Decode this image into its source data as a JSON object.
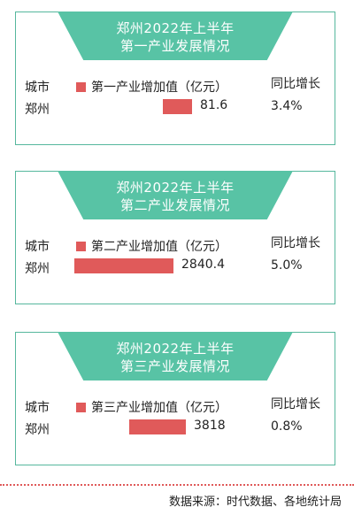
{
  "colors": {
    "teal": "#58c3a5",
    "bar": "#e05a5a",
    "border": "#56b79d"
  },
  "labels": {
    "city": "城市",
    "growth": "同比增长"
  },
  "source": "数据来源：时代数据、各地统计局",
  "chart_data": [
    {
      "type": "bar",
      "orientation": "horizontal",
      "title_line1": "郑州2022年上半年",
      "title_line2": "第一产业发展情况",
      "legend": "第一产业增加值（亿元）",
      "categories": [
        "郑州"
      ],
      "values": [
        81.6
      ],
      "value_label": "81.6",
      "growth": "3.4%"
    },
    {
      "type": "bar",
      "orientation": "horizontal",
      "title_line1": "郑州2022年上半年",
      "title_line2": "第二产业发展情况",
      "legend": "第二产业增加值（亿元）",
      "categories": [
        "郑州"
      ],
      "values": [
        2840.4
      ],
      "value_label": "2840.4",
      "growth": "5.0%"
    },
    {
      "type": "bar",
      "orientation": "horizontal",
      "title_line1": "郑州2022年上半年",
      "title_line2": "第三产业发展情况",
      "legend": "第三产业增加值（亿元）",
      "categories": [
        "郑州"
      ],
      "values": [
        3818
      ],
      "value_label": "3818",
      "growth": "0.8%"
    }
  ]
}
